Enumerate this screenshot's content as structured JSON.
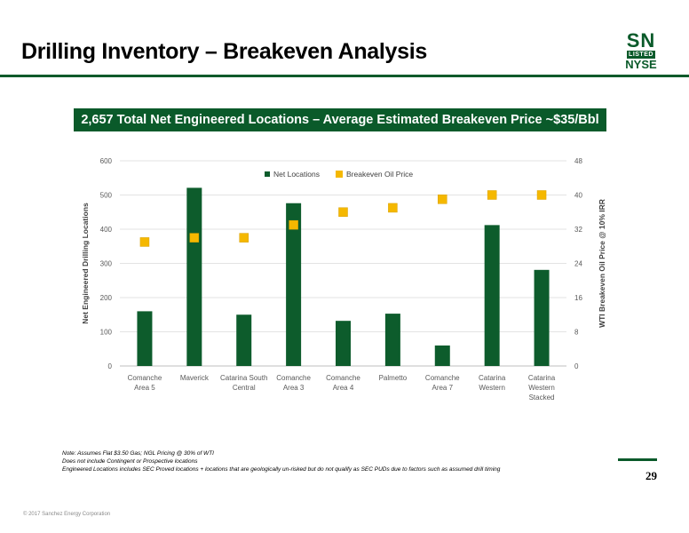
{
  "slide": {
    "title": "Drilling Inventory – Breakeven Analysis",
    "banner": "2,657 Total Net Engineered Locations – Average Estimated Breakeven Price ~$35/Bbl",
    "logo": {
      "sn": "SN",
      "listed": "LISTED",
      "exchange": "NYSE"
    },
    "notes": [
      "Note: Assumes Flat $3.50 Gas; NGL Pricing @ 30% of WTI",
      "Does not include Contingent or Prospective locations",
      "Engineered Locations includes SEC Proved locations + locations that are geologically un-risked but do not qualify as SEC PUDs due to factors such as assumed drill timing"
    ],
    "page_number": "29",
    "copyright": "© 2017 Sanchez Energy Corporation"
  },
  "colors": {
    "brand_green": "#0a5a2a",
    "bar": "#0d5c2c",
    "marker": "#f5b800"
  },
  "chart_data": {
    "type": "bar",
    "categories": [
      [
        "Comanche",
        "Area 5"
      ],
      [
        "Maverick"
      ],
      [
        "Catarina South",
        "Central"
      ],
      [
        "Comanche",
        "Area 3"
      ],
      [
        "Comanche",
        "Area 4"
      ],
      [
        "Palmetto"
      ],
      [
        "Comanche",
        "Area 7"
      ],
      [
        "Catarina",
        "Western"
      ],
      [
        "Catarina",
        "Western",
        "Stacked"
      ]
    ],
    "series": [
      {
        "name": "Net Locations",
        "type": "bar",
        "axis": "left",
        "values": [
          160,
          521,
          150,
          476,
          132,
          153,
          60,
          412,
          281
        ]
      },
      {
        "name": "Breakeven Oil Price",
        "type": "marker",
        "axis": "right",
        "values": [
          29,
          30,
          30,
          33,
          36,
          37,
          39,
          40,
          40
        ]
      }
    ],
    "ylabel": "Net Engineered Drilling Locations",
    "y2label": "WTI Breakeven Oil Price @ 10% IRR",
    "ylim": [
      0,
      600
    ],
    "y2lim": [
      0,
      48
    ],
    "yticks": [
      0,
      100,
      200,
      300,
      400,
      500,
      600
    ],
    "y2ticks": [
      0,
      8,
      16,
      24,
      32,
      40,
      48
    ],
    "grid": true,
    "legend_position": "top-center"
  }
}
